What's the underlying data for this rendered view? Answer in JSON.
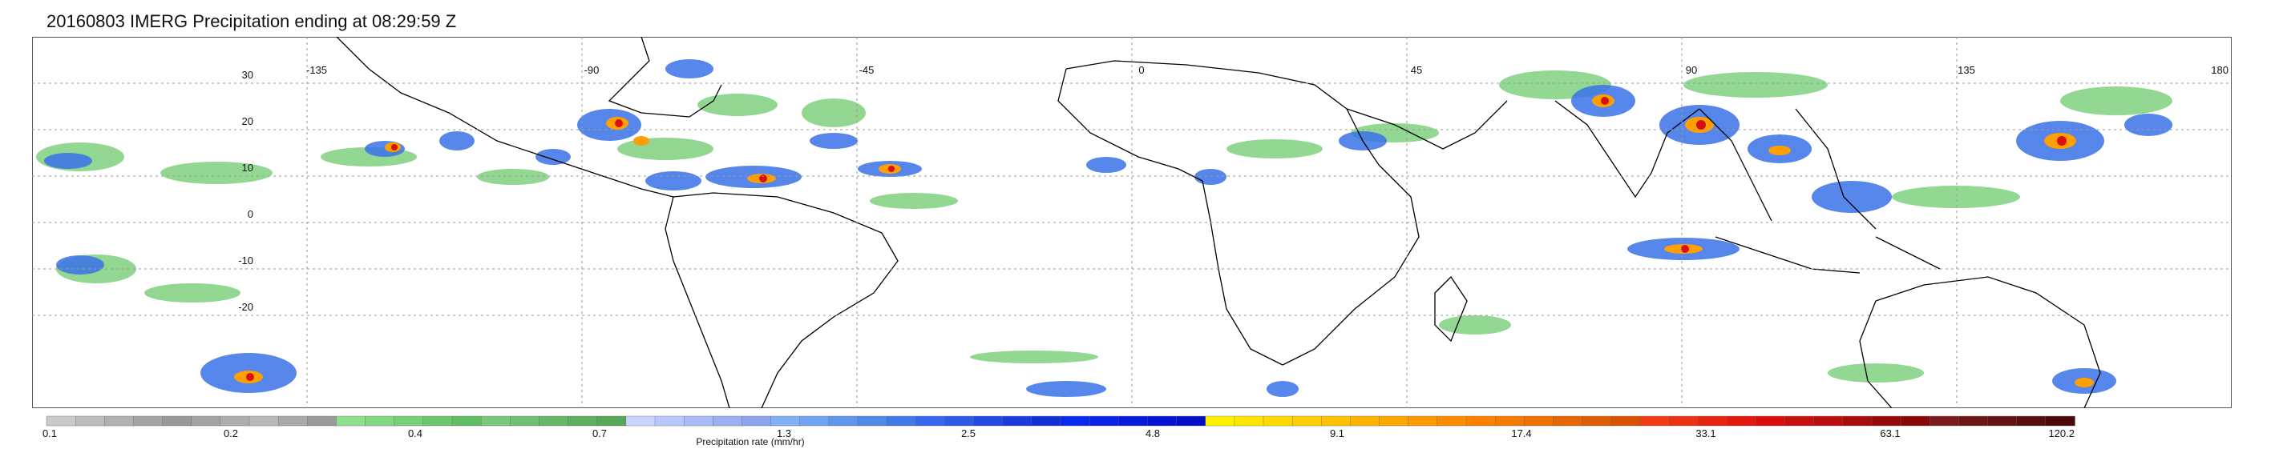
{
  "title": "20160803 IMERG Precipitation ending at 08:29:59 Z",
  "map": {
    "projection": "equirectangular",
    "lon_range": [
      -180,
      180
    ],
    "lat_range": [
      -40,
      40
    ],
    "lon_labels": [
      "-135",
      "-90",
      "-45",
      "0",
      "45",
      "90",
      "135",
      "180"
    ],
    "lon_label_values": [
      -135,
      -90,
      -45,
      0,
      45,
      90,
      135,
      180
    ],
    "lat_labels": [
      "30",
      "20",
      "10",
      "0",
      "-10",
      "-20"
    ],
    "lat_label_values": [
      30,
      20,
      10,
      0,
      -10,
      -20
    ],
    "gridlines": true,
    "gridline_color": "#9a9a9a",
    "coastline_color": "#000000"
  },
  "colorbar": {
    "label": "Precipitation rate (mm/hr)",
    "tick_labels": [
      "0.1",
      "0.2",
      "0.4",
      "0.7",
      "1.3",
      "2.5",
      "4.8",
      "9.1",
      "17.4",
      "33.1",
      "63.1",
      "120.2"
    ],
    "bins_per_tick": 5,
    "colors": [
      "#c9c9c9",
      "#bcbcbc",
      "#b0b0b0",
      "#a4a4a4",
      "#989898",
      "#a3a3a3",
      "#adadad",
      "#b8b8b8",
      "#a9a9a9",
      "#9a9a9a",
      "#8ee08e",
      "#82d882",
      "#77d077",
      "#6cc76c",
      "#62be62",
      "#7bc77b",
      "#72bf72",
      "#68b768",
      "#60af60",
      "#58a658",
      "#c9d4ff",
      "#b8c8ff",
      "#a9bcf8",
      "#9ab0f2",
      "#8ba4ec",
      "#80b0f5",
      "#70a4f2",
      "#5f96ee",
      "#4f88ea",
      "#3f7ae6",
      "#3766ee",
      "#2d58e8",
      "#2349e2",
      "#1a3cdc",
      "#1130d6",
      "#0a2af0",
      "#0822e6",
      "#061adc",
      "#0414d2",
      "#020ec8",
      "#fff200",
      "#ffe600",
      "#ffda00",
      "#ffce00",
      "#ffc200",
      "#ffb300",
      "#ffa600",
      "#ff9900",
      "#ff8c00",
      "#ff8000",
      "#f77a00",
      "#f07000",
      "#e86600",
      "#e05c00",
      "#d85200",
      "#f23c14",
      "#ec3012",
      "#e62410",
      "#e0180e",
      "#da0c0c",
      "#c81010",
      "#b80e0e",
      "#a80c0c",
      "#980a0a",
      "#880808",
      "#7a1a1a",
      "#6e1616",
      "#621212",
      "#560e0e",
      "#4a0a0a"
    ]
  }
}
